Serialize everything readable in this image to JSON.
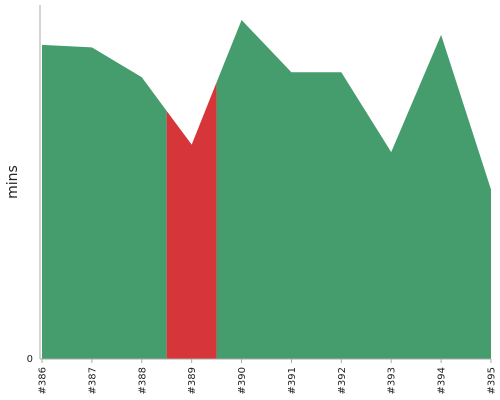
{
  "chart_data": {
    "type": "area",
    "title": "",
    "xlabel": "",
    "ylabel": "mins",
    "ylim": [
      0,
      14.2
    ],
    "y_ticks": [
      0
    ],
    "grid": false,
    "legend": "none",
    "categories": [
      "#386",
      "#387",
      "#388",
      "#389",
      "#390",
      "#391",
      "#392",
      "#393",
      "#394",
      "#395"
    ],
    "series": [
      {
        "values": [
          12.6,
          12.5,
          11.3,
          8.6,
          13.6,
          11.5,
          11.5,
          8.3,
          13.0,
          6.8
        ]
      }
    ],
    "colors": {
      "success": "#459c6c",
      "failed": "#d63639",
      "axis": "#aaaaaa"
    },
    "failed_build": "#389"
  }
}
